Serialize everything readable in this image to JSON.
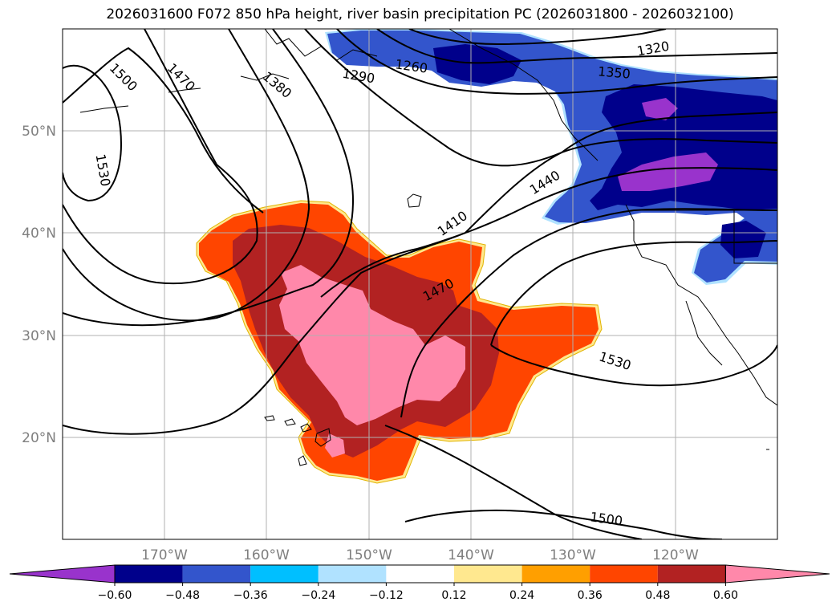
{
  "title": "2026031600 F072 850 hPa height, river basin precipitation PC (2026031800 - 2026032100)",
  "lon_labels": [
    "170°W",
    "160°W",
    "150°W",
    "140°W",
    "130°W",
    "120°W"
  ],
  "lat_labels": [
    "50°N",
    "40°N",
    "30°N",
    "20°N"
  ],
  "contour_labels": [
    "1500",
    "1470",
    "1530",
    "1380",
    "1290",
    "1260",
    "1320",
    "1350",
    "1440",
    "1410",
    "1470",
    "1530",
    "1500"
  ],
  "colorbar": {
    "ticks": [
      "−0.60",
      "−0.48",
      "−0.36",
      "−0.24",
      "−0.12",
      "0.12",
      "0.24",
      "0.36",
      "0.48",
      "0.60"
    ],
    "colors": [
      "#9933cc",
      "#00008b",
      "#3355cc",
      "#00bfff",
      "#b0e2ff",
      "#ffffff",
      "#ffe88f",
      "#ff9f00",
      "#ff4500",
      "#b22222",
      "#ff88aa"
    ]
  }
}
